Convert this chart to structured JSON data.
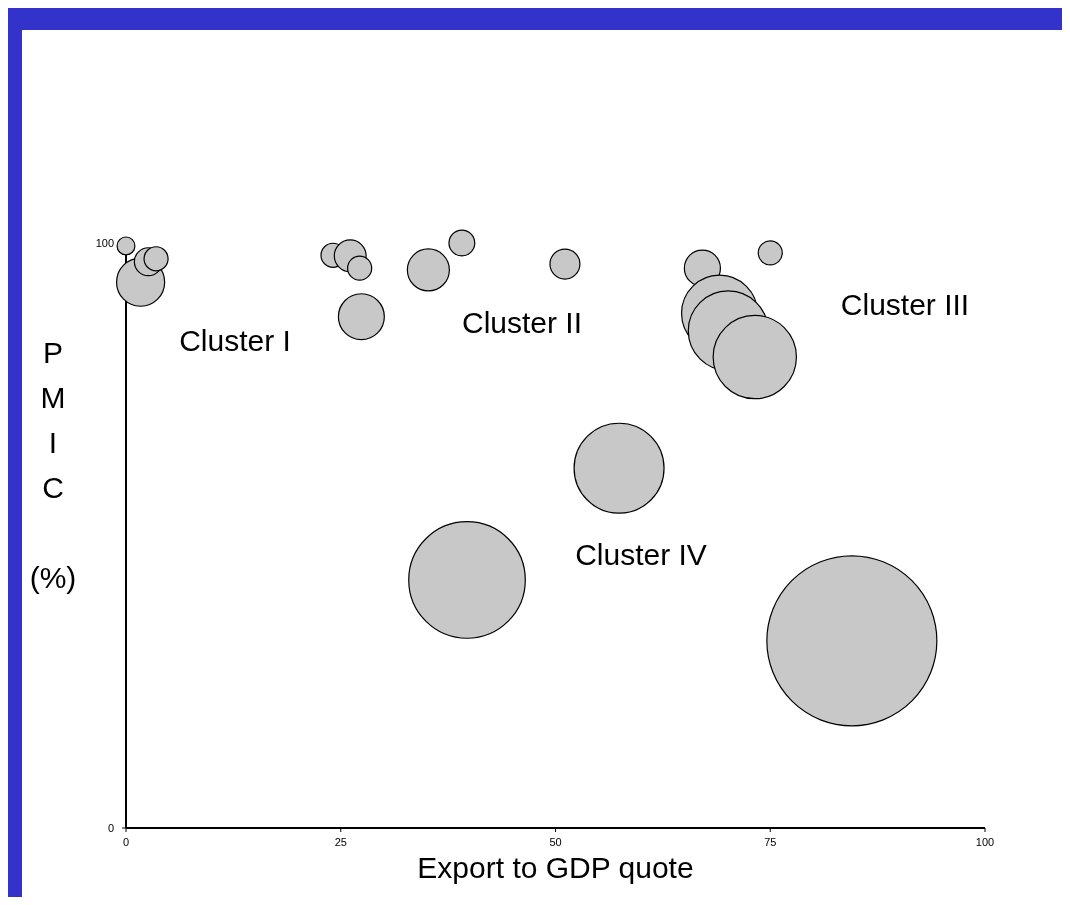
{
  "chart_data": {
    "type": "bubble",
    "xlabel": "Export to GDP quote",
    "ylabel": "PMIC (%)",
    "xlim": [
      0,
      100
    ],
    "ylim": [
      0,
      100
    ],
    "xticks": [
      0,
      25,
      50,
      75,
      100
    ],
    "yticks": [
      0,
      100
    ],
    "color": "#c8c8c8",
    "x": [
      0,
      1.7,
      2.6,
      3.5,
      24.1,
      26.1,
      27.2,
      27.4,
      35.2,
      39.1,
      51.1,
      67.1,
      75,
      69.1,
      70.1,
      73.2,
      57.4,
      39.7,
      84.5
    ],
    "values": [
      99.5,
      93.3,
      96.8,
      97.3,
      97.9,
      97.8,
      95.7,
      87.4,
      95.4,
      100,
      96.4,
      95.7,
      98.3,
      88,
      85,
      80.5,
      61.5,
      42.4,
      32
    ],
    "sizes": [
      0.011,
      0.08,
      0.027,
      0.02,
      0.02,
      0.035,
      0.02,
      0.073,
      0.061,
      0.023,
      0.031,
      0.045,
      0.02,
      0.2,
      0.22,
      0.24,
      0.28,
      0.47,
      1
    ],
    "annotations": [
      "Cluster I",
      "Cluster II",
      "Cluster III",
      "Cluster IV"
    ]
  }
}
